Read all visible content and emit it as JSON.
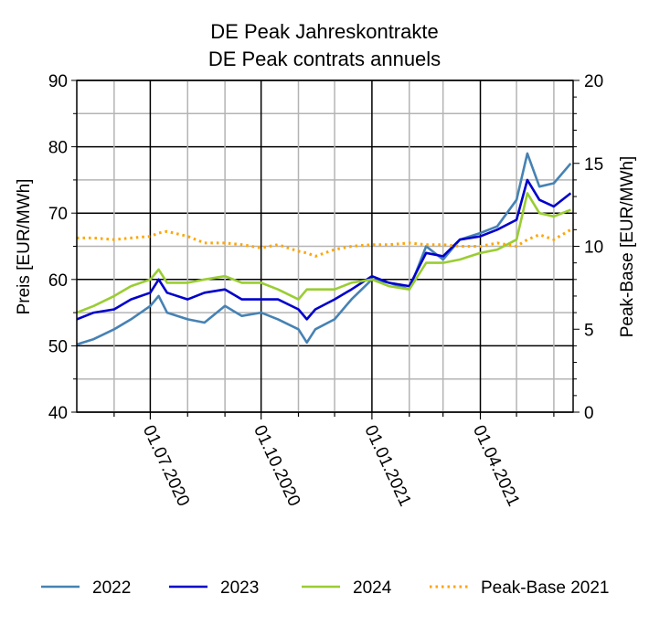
{
  "chart_data": {
    "type": "line",
    "title": [
      "DE Peak Jahreskontrakte",
      "DE Peak contrats annuels"
    ],
    "xlabel": "",
    "ylabel": "Preis [EUR/MWh]",
    "ylabel_right": "Peak-Base [EUR/MWh]",
    "xlim": [
      "2020-05-01",
      "2021-06-17"
    ],
    "ylim": [
      40,
      90
    ],
    "ylim_right": [
      0,
      20
    ],
    "yticks": [
      40,
      50,
      60,
      70,
      80,
      90
    ],
    "yticks_right": [
      0,
      5,
      10,
      15,
      20
    ],
    "xticks": [
      {
        "date": "2020-07-01",
        "label": "01.07.2020"
      },
      {
        "date": "2020-10-01",
        "label": "01.10.2020"
      },
      {
        "date": "2021-01-01",
        "label": "01.01.2021"
      },
      {
        "date": "2021-04-01",
        "label": "01.04.2021"
      }
    ],
    "grid": true,
    "legend_position": "bottom",
    "x": [
      "2020-05-01",
      "2020-05-15",
      "2020-06-01",
      "2020-06-15",
      "2020-07-01",
      "2020-07-08",
      "2020-07-15",
      "2020-08-01",
      "2020-08-15",
      "2020-09-01",
      "2020-09-15",
      "2020-10-01",
      "2020-10-15",
      "2020-11-01",
      "2020-11-08",
      "2020-11-15",
      "2020-12-01",
      "2020-12-15",
      "2021-01-01",
      "2021-01-15",
      "2021-02-01",
      "2021-02-15",
      "2021-03-01",
      "2021-03-15",
      "2021-04-01",
      "2021-04-15",
      "2021-05-01",
      "2021-05-10",
      "2021-05-20",
      "2021-06-01",
      "2021-06-15"
    ],
    "series": [
      {
        "name": "2022",
        "color": "#4682b4",
        "axis": "left",
        "style": "solid",
        "values": [
          50.2,
          51,
          52.5,
          54,
          56,
          57.5,
          55,
          54,
          53.5,
          56,
          54.5,
          55,
          54,
          52.5,
          50.5,
          52.5,
          54,
          57,
          60,
          59.5,
          58.5,
          65,
          63,
          66,
          67,
          68,
          72,
          79,
          74,
          74.5,
          77.5
        ]
      },
      {
        "name": "2023",
        "color": "#0000cd",
        "axis": "left",
        "style": "solid",
        "values": [
          54,
          55,
          55.5,
          57,
          58,
          60,
          58,
          57,
          58,
          58.5,
          57,
          57,
          57,
          55.5,
          54,
          55.5,
          57,
          58.5,
          60.5,
          59.5,
          59,
          64,
          63.5,
          66,
          66.5,
          67.5,
          69,
          75,
          72,
          71,
          73
        ]
      },
      {
        "name": "2024",
        "color": "#9acd32",
        "axis": "left",
        "style": "solid",
        "values": [
          55,
          56,
          57.5,
          59,
          60,
          61.5,
          59.5,
          59.5,
          60,
          60.5,
          59.5,
          59.5,
          58.5,
          57,
          58.5,
          58.5,
          58.5,
          59.5,
          60,
          59,
          58.5,
          62.5,
          62.5,
          63,
          64,
          64.5,
          66,
          73,
          70,
          69.5,
          70.5
        ]
      },
      {
        "name": "Peak-Base 2021",
        "color": "#ffa500",
        "axis": "right",
        "style": "dotted",
        "values": [
          10.5,
          10.5,
          10.4,
          10.5,
          10.6,
          10.8,
          10.9,
          10.6,
          10.2,
          10.2,
          10.1,
          9.9,
          10.1,
          9.7,
          9.6,
          9.4,
          9.8,
          10.0,
          10.1,
          10.1,
          10.2,
          10.1,
          10.1,
          10.0,
          10.0,
          10.2,
          10.0,
          10.4,
          10.7,
          10.4,
          11.0
        ]
      }
    ]
  }
}
